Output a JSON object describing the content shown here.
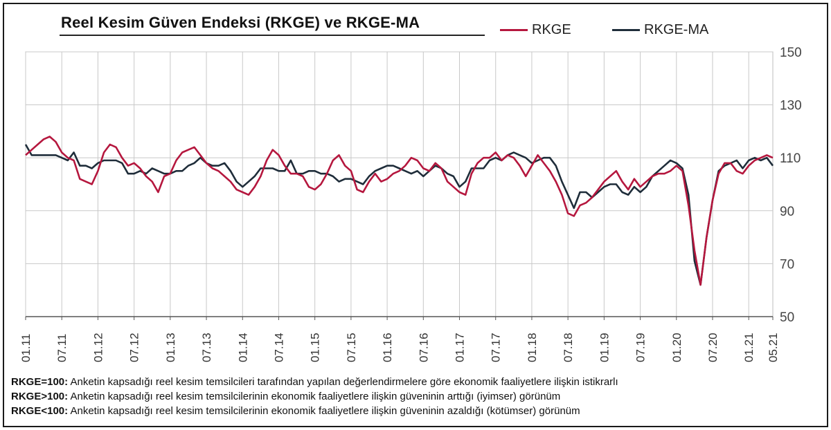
{
  "chart_data": {
    "type": "line",
    "title": "Reel Kesim Güven Endeksi (RKGE) ve RKGE-MA",
    "xlabel": "",
    "ylabel": "",
    "ylim": [
      50,
      150
    ],
    "yticks": [
      50,
      70,
      90,
      110,
      130,
      150
    ],
    "grid": true,
    "legend_position": "top-right",
    "x_tick_labels": [
      "01.11",
      "07.11",
      "01.12",
      "07.12",
      "01.13",
      "07.13",
      "01.14",
      "07.14",
      "01.15",
      "07.15",
      "01.16",
      "07.16",
      "01.17",
      "07.17",
      "01.18",
      "07.18",
      "01.19",
      "07.19",
      "01.20",
      "07.20",
      "01.21",
      "05.21"
    ],
    "x_tick_months": [
      0,
      6,
      12,
      18,
      24,
      30,
      36,
      42,
      48,
      54,
      60,
      66,
      72,
      78,
      84,
      90,
      96,
      102,
      108,
      114,
      120,
      124
    ],
    "series": [
      {
        "name": "RKGE",
        "color": "#b5173e",
        "values": [
          111,
          113,
          115,
          117,
          118,
          116,
          112,
          110,
          109,
          102,
          101,
          100,
          105,
          112,
          115,
          114,
          110,
          107,
          108,
          106,
          103,
          101,
          97,
          103,
          104,
          109,
          112,
          113,
          114,
          111,
          108,
          106,
          105,
          103,
          101,
          98,
          97,
          96,
          99,
          103,
          109,
          113,
          111,
          107,
          104,
          104,
          103,
          99,
          98,
          100,
          104,
          109,
          111,
          107,
          105,
          98,
          97,
          101,
          104,
          101,
          102,
          104,
          105,
          107,
          110,
          109,
          106,
          105,
          108,
          106,
          101,
          99,
          97,
          96,
          104,
          108,
          110,
          110,
          112,
          109,
          111,
          110,
          107,
          103,
          107,
          111,
          108,
          105,
          101,
          96,
          89,
          88,
          92,
          93,
          95,
          98,
          101,
          103,
          105,
          101,
          98,
          102,
          99,
          101,
          103,
          104,
          104,
          105,
          107,
          105,
          92,
          75,
          62,
          80,
          94,
          104,
          108,
          108,
          105,
          104,
          107,
          109,
          110,
          111,
          110
        ]
      },
      {
        "name": "RKGE-MA",
        "color": "#1f2d3a",
        "values": [
          115,
          111,
          111,
          111,
          111,
          111,
          110,
          109,
          112,
          107,
          107,
          106,
          108,
          109,
          109,
          109,
          108,
          104,
          104,
          105,
          104,
          106,
          105,
          104,
          104,
          105,
          105,
          107,
          108,
          110,
          108,
          107,
          107,
          108,
          105,
          101,
          99,
          101,
          103,
          106,
          106,
          106,
          105,
          105,
          109,
          104,
          104,
          105,
          105,
          104,
          104,
          103,
          101,
          102,
          102,
          101,
          100,
          103,
          105,
          106,
          107,
          107,
          106,
          105,
          104,
          105,
          103,
          105,
          107,
          106,
          104,
          103,
          99,
          101,
          106,
          106,
          106,
          109,
          110,
          109,
          111,
          112,
          111,
          110,
          108,
          109,
          110,
          110,
          107,
          101,
          96,
          91,
          97,
          97,
          95,
          97,
          99,
          100,
          100,
          97,
          96,
          99,
          97,
          99,
          103,
          105,
          107,
          109,
          108,
          106,
          96,
          71,
          62,
          80,
          94,
          105,
          107,
          108,
          109,
          106,
          109,
          110,
          109,
          110,
          107
        ]
      }
    ]
  },
  "notes": [
    {
      "label": "RKGE=100:",
      "text": "Anketin kapsadığı reel kesim temsilcileri tarafından yapılan değerlendirmelere göre ekonomik faaliyetlere ilişkin istikrarlı"
    },
    {
      "label": "RKGE>100:",
      "text": "Anketin kapsadığı reel kesim temsilcilerinin ekonomik faaliyetlere ilişkin güveninin arttığı (iyimser) görünüm"
    },
    {
      "label": "RKGE<100:",
      "text": "Anketin kapsadığı reel kesim temsilcilerinin ekonomik faaliyetlere ilişkin güveninin azaldığı (kötümser) görünüm"
    }
  ]
}
